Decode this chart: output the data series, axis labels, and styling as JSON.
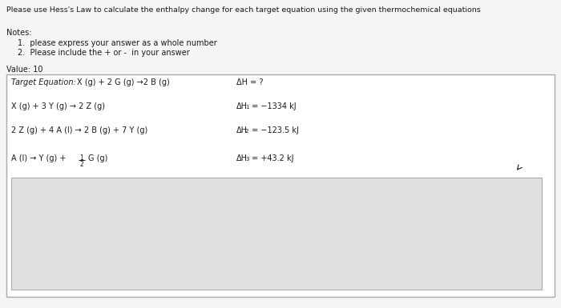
{
  "page_bg": "#f5f5f5",
  "header_text": "Please use Hess's Law to calculate the enthalpy change for each target equation using the given thermochemical equations",
  "notes_label": "Notes:",
  "note1": "1.  please express your answer as a whole number",
  "note2": "2.  Please include the + or -  in your answer",
  "value_label": "Value: 10",
  "target_eq_label": "Target Equation: X (g) + 2 G (g) →2 B (g)",
  "target_dH": "ΔH = ?",
  "eq1": "X (g) + 3 Y (g) → 2 Z (g)",
  "dH1_label": "ΔH",
  "dH1_sub": "1",
  "dH1_val": " = −1334 kJ",
  "eq2": "2 Z (g) + 4 A (l) → 2 B (g) + 7 Y (g)",
  "dH2_label": "ΔH",
  "dH2_sub": "2",
  "dH2_val": " = −123.5 kJ",
  "eq3_part1": "A (l) → Y (g) + ",
  "eq3_frac_num": "1",
  "eq3_frac_den": "2",
  "eq3_part2": "G (g)",
  "dH3_label": "ΔH",
  "dH3_sub": "3",
  "dH3_val": " = +43.2 kJ",
  "font_color": "#1a1a1a",
  "box_bg": "#ffffff",
  "box_border": "#aaaaaa",
  "ans_box_bg": "#e0e0e0",
  "ans_box_border": "#aaaaaa"
}
